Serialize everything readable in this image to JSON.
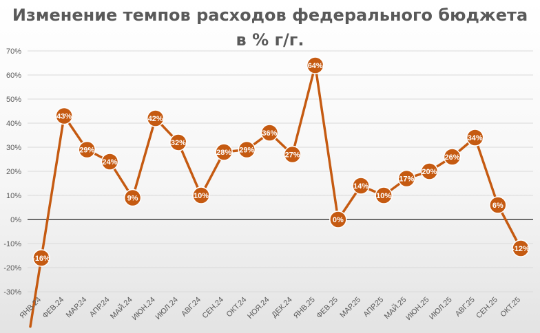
{
  "chart_data": {
    "type": "line",
    "title": "Изменение темпов расходов федерального бюджета",
    "subtitle": "в % г/г.",
    "xlabel": "",
    "ylabel": "",
    "ylim": [
      -30,
      70
    ],
    "y_ticks": [
      70,
      60,
      50,
      40,
      30,
      20,
      10,
      0,
      -10,
      -20,
      -30
    ],
    "y_tick_labels": [
      "70%",
      "60%",
      "50%",
      "40%",
      "30%",
      "20%",
      "10%",
      "0%",
      "-10%",
      "-20%",
      "-30%"
    ],
    "grid": true,
    "legend": "none",
    "colors": {
      "line": "#c55a11",
      "marker_fill": "#c55a11",
      "marker_stroke": "#ffffff",
      "grid": "#d9d9d9",
      "zero_axis": "#404040"
    },
    "categories": [
      "ЯНВ.24",
      "ФЕВ.24",
      "МАР.24",
      "АПР.24",
      "МАЙ.24",
      "ИЮН.24",
      "ИЮЛ.24",
      "АВГ.24",
      "СЕН.24",
      "ОКТ.24",
      "НОЯ.24",
      "ДЕК.24",
      "ЯНВ.25",
      "ФЕВ.25",
      "МАР.25",
      "АПР.25",
      "МАЙ.25",
      "ИЮН.25",
      "ИЮЛ.25",
      "АВГ.25",
      "СЕН.25",
      "ОКТ.25"
    ],
    "values": [
      -16,
      43,
      29,
      24,
      9,
      42,
      32,
      10,
      28,
      29,
      36,
      27,
      64,
      0,
      14,
      10,
      17,
      20,
      26,
      34,
      6,
      -12
    ],
    "data_labels": [
      "-16%",
      "43%",
      "29%",
      "24%",
      "9%",
      "42%",
      "32%",
      "10%",
      "28%",
      "29%",
      "36%",
      "27%",
      "64%",
      "0%",
      "14%",
      "10%",
      "17%",
      "20%",
      "26%",
      "34%",
      "6%",
      "-12%"
    ]
  }
}
